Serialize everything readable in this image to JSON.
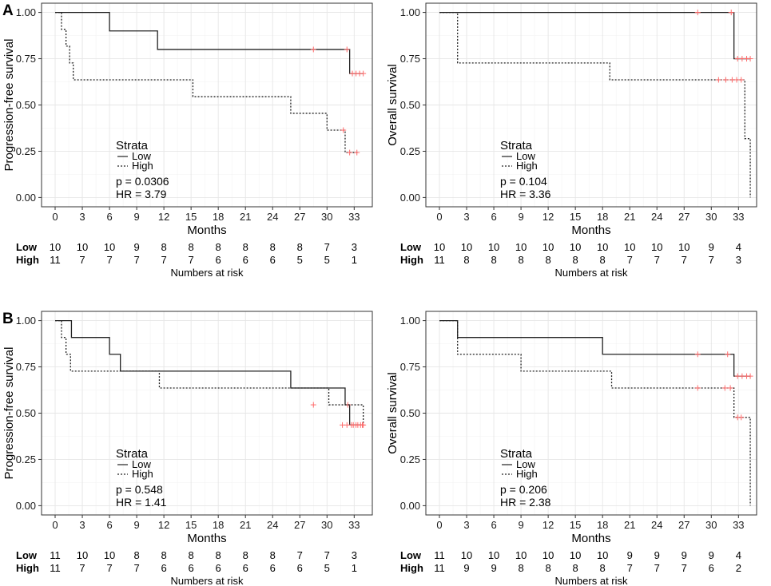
{
  "row_labels": [
    "A",
    "B"
  ],
  "chart_data": [
    {
      "type": "line",
      "panel": "A",
      "ylabel": "Progression-free survival",
      "xlabel": "Months",
      "xlim": [
        -1.5,
        35
      ],
      "ylim": [
        -0.05,
        1.05
      ],
      "xticks": [
        0,
        3,
        6,
        9,
        12,
        15,
        18,
        21,
        24,
        27,
        30,
        33
      ],
      "yticks": [
        0.0,
        0.25,
        0.5,
        0.75,
        1.0
      ],
      "ytick_labels": [
        "0.00",
        "0.25",
        "0.50",
        "0.75",
        "1.00"
      ],
      "legend": {
        "title": "Strata",
        "items": [
          "Low",
          "High"
        ]
      },
      "p_text": "p = 0.0306",
      "hr_text": "HR = 3.79",
      "series": [
        {
          "name": "Low",
          "style": "solid",
          "x": [
            0,
            6.0,
            11.3,
            32.5,
            34.0
          ],
          "y": [
            1.0,
            0.9,
            0.8,
            0.67,
            0.67
          ],
          "censor_x": [
            28.5,
            32.2,
            32.8,
            33.2,
            33.6,
            34.0
          ],
          "censor_y": [
            0.8,
            0.8,
            0.67,
            0.67,
            0.67,
            0.67
          ]
        },
        {
          "name": "High",
          "style": "dotted",
          "x": [
            0,
            0.7,
            1.2,
            1.6,
            2.0,
            15.2,
            26.0,
            30.0,
            32.0,
            33.5
          ],
          "y": [
            1.0,
            0.909,
            0.818,
            0.727,
            0.636,
            0.545,
            0.455,
            0.364,
            0.243,
            0.243
          ],
          "censor_x": [
            31.8,
            32.5,
            33.3
          ],
          "censor_y": [
            0.364,
            0.243,
            0.243
          ]
        }
      ],
      "risk_table": {
        "title": "Numbers at risk",
        "rows": [
          {
            "label": "Low",
            "values": [
              "10",
              "10",
              "10",
              "9",
              "8",
              "8",
              "8",
              "8",
              "8",
              "8",
              "7",
              "3"
            ]
          },
          {
            "label": "High",
            "values": [
              "11",
              "7",
              "7",
              "7",
              "7",
              "7",
              "6",
              "6",
              "6",
              "5",
              "5",
              "1"
            ]
          }
        ]
      }
    },
    {
      "type": "line",
      "panel": "A",
      "ylabel": "Overall survival",
      "xlabel": "Months",
      "xlim": [
        -1.5,
        35
      ],
      "ylim": [
        -0.05,
        1.05
      ],
      "xticks": [
        0,
        3,
        6,
        9,
        12,
        15,
        18,
        21,
        24,
        27,
        30,
        33
      ],
      "yticks": [
        0.0,
        0.25,
        0.5,
        0.75,
        1.0
      ],
      "ytick_labels": [
        "0.00",
        "0.25",
        "0.50",
        "0.75",
        "1.00"
      ],
      "legend": {
        "title": "Strata",
        "items": [
          "Low",
          "High"
        ]
      },
      "p_text": "p = 0.104",
      "hr_text": "HR = 3.36",
      "series": [
        {
          "name": "Low",
          "style": "solid",
          "x": [
            0,
            32.5,
            34.3
          ],
          "y": [
            1.0,
            0.75,
            0.75
          ],
          "censor_x": [
            28.5,
            32.2,
            32.9,
            33.4,
            33.9,
            34.3
          ],
          "censor_y": [
            1.0,
            1.0,
            0.75,
            0.75,
            0.75,
            0.75
          ]
        },
        {
          "name": "High",
          "style": "dotted",
          "x": [
            0,
            2.0,
            18.8,
            33.7,
            34.3,
            34.3
          ],
          "y": [
            1.0,
            0.727,
            0.636,
            0.318,
            0.0,
            0.0
          ],
          "censor_x": [
            30.8,
            31.6,
            32.3,
            32.8,
            33.3
          ],
          "censor_y": [
            0.636,
            0.636,
            0.636,
            0.636,
            0.636
          ]
        }
      ],
      "risk_table": {
        "title": "Numbers at risk",
        "rows": [
          {
            "label": "Low",
            "values": [
              "10",
              "10",
              "10",
              "10",
              "10",
              "10",
              "10",
              "10",
              "10",
              "10",
              "9",
              "4"
            ]
          },
          {
            "label": "High",
            "values": [
              "11",
              "8",
              "8",
              "8",
              "8",
              "8",
              "8",
              "7",
              "7",
              "7",
              "7",
              "3"
            ]
          }
        ]
      }
    },
    {
      "type": "line",
      "panel": "B",
      "ylabel": "Progression-free survival",
      "xlabel": "Months",
      "xlim": [
        -1.5,
        35
      ],
      "ylim": [
        -0.05,
        1.05
      ],
      "xticks": [
        0,
        3,
        6,
        9,
        12,
        15,
        18,
        21,
        24,
        27,
        30,
        33
      ],
      "yticks": [
        0.0,
        0.25,
        0.5,
        0.75,
        1.0
      ],
      "ytick_labels": [
        "0.00",
        "0.25",
        "0.50",
        "0.75",
        "1.00"
      ],
      "legend": {
        "title": "Strata",
        "items": [
          "Low",
          "High"
        ]
      },
      "p_text": "p = 0.548",
      "hr_text": "HR = 1.41",
      "series": [
        {
          "name": "Low",
          "style": "solid",
          "x": [
            0,
            1.8,
            6.0,
            7.2,
            26.0,
            32.0,
            32.5,
            34.0
          ],
          "y": [
            1.0,
            0.909,
            0.818,
            0.727,
            0.636,
            0.545,
            0.436,
            0.436
          ],
          "censor_x": [
            32.3,
            32.9,
            33.4,
            33.9
          ],
          "censor_y": [
            0.545,
            0.436,
            0.436,
            0.436
          ]
        },
        {
          "name": "High",
          "style": "dotted",
          "x": [
            0,
            0.7,
            1.2,
            1.7,
            11.5,
            30.2,
            34.0
          ],
          "y": [
            1.0,
            0.909,
            0.818,
            0.727,
            0.636,
            0.545,
            0.436
          ],
          "censor_x": [
            28.5,
            31.7,
            32.2,
            32.7,
            33.2,
            33.7,
            34.0
          ],
          "censor_y": [
            0.545,
            0.436,
            0.436,
            0.436,
            0.436,
            0.436,
            0.436
          ]
        }
      ],
      "risk_table": {
        "title": "Numbers at risk",
        "rows": [
          {
            "label": "Low",
            "values": [
              "11",
              "10",
              "10",
              "8",
              "8",
              "8",
              "8",
              "8",
              "8",
              "7",
              "7",
              "3"
            ]
          },
          {
            "label": "High",
            "values": [
              "11",
              "7",
              "7",
              "7",
              "6",
              "6",
              "6",
              "6",
              "6",
              "6",
              "5",
              "1"
            ]
          }
        ]
      }
    },
    {
      "type": "line",
      "panel": "B",
      "ylabel": "Overall survival",
      "xlabel": "Months",
      "xlim": [
        -1.5,
        35
      ],
      "ylim": [
        -0.05,
        1.05
      ],
      "xticks": [
        0,
        3,
        6,
        9,
        12,
        15,
        18,
        21,
        24,
        27,
        30,
        33
      ],
      "yticks": [
        0.0,
        0.25,
        0.5,
        0.75,
        1.0
      ],
      "ytick_labels": [
        "0.00",
        "0.25",
        "0.50",
        "0.75",
        "1.00"
      ],
      "legend": {
        "title": "Strata",
        "items": [
          "Low",
          "High"
        ]
      },
      "p_text": "p = 0.206",
      "hr_text": "HR = 2.38",
      "series": [
        {
          "name": "Low",
          "style": "solid",
          "x": [
            0,
            2.0,
            18.0,
            32.5,
            34.3
          ],
          "y": [
            1.0,
            0.909,
            0.818,
            0.7,
            0.7
          ],
          "censor_x": [
            28.5,
            31.8,
            32.9,
            33.4,
            33.9,
            34.3
          ],
          "censor_y": [
            0.818,
            0.818,
            0.7,
            0.7,
            0.7,
            0.7
          ]
        },
        {
          "name": "High",
          "style": "dotted",
          "x": [
            0,
            2.0,
            9.0,
            19.0,
            32.5,
            33.7,
            34.3,
            34.3
          ],
          "y": [
            1.0,
            0.818,
            0.727,
            0.636,
            0.477,
            0.477,
            0.0,
            0.0
          ],
          "censor_x": [
            28.5,
            31.5,
            32.1,
            32.9,
            33.3
          ],
          "censor_y": [
            0.636,
            0.636,
            0.636,
            0.477,
            0.477
          ]
        }
      ],
      "risk_table": {
        "title": "Numbers at risk",
        "rows": [
          {
            "label": "Low",
            "values": [
              "11",
              "10",
              "10",
              "10",
              "10",
              "10",
              "10",
              "9",
              "9",
              "9",
              "9",
              "4"
            ]
          },
          {
            "label": "High",
            "values": [
              "11",
              "9",
              "9",
              "8",
              "8",
              "8",
              "8",
              "7",
              "7",
              "7",
              "6",
              "2"
            ]
          }
        ]
      }
    }
  ]
}
